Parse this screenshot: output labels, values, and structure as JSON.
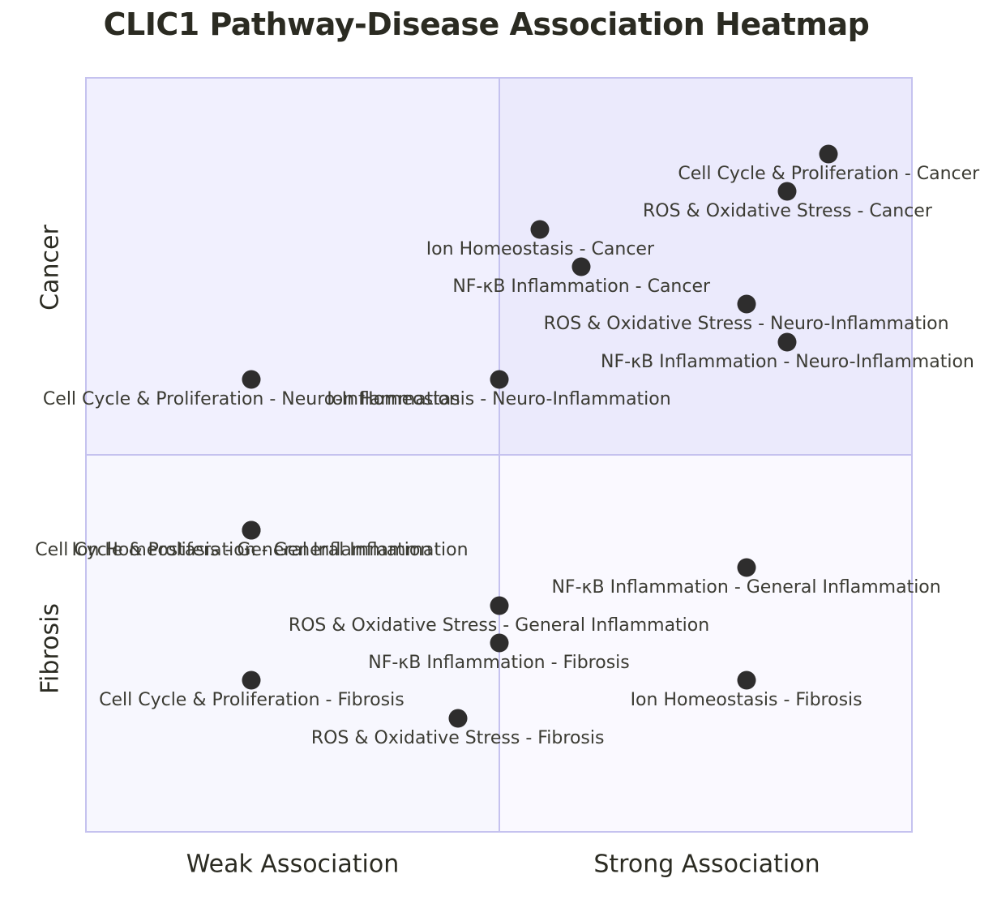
{
  "title": "CLIC1 Pathway-Disease Association Heatmap",
  "axes": {
    "x_left": "Weak Association",
    "x_right": "Strong Association",
    "y_top": "Cancer",
    "y_bottom": "Fibrosis"
  },
  "colors": {
    "quadrant_top_left": "#f1f0fe",
    "quadrant_top_right": "#ebeafc",
    "quadrant_bottom_left": "#f7f7fe",
    "quadrant_bottom_right": "#faf9ff",
    "grid_line": "#c5c2ef",
    "point": "#2e2d2d",
    "title_text": "#2b2b22",
    "label_text": "#3b3b33"
  },
  "chart_data": {
    "type": "scatter",
    "title": "CLIC1 Pathway-Disease Association Heatmap",
    "x_axis": {
      "label_left": "Weak Association",
      "label_right": "Strong Association",
      "range": [
        0,
        1
      ],
      "meaning": "association strength, weak (left) to strong (right)"
    },
    "y_axis": {
      "label_top": "Cancer",
      "label_bottom": "Fibrosis",
      "meaning": "disease group band; y is vertical position fraction from plot top"
    },
    "grid": "2x2 quadrants, vertical and horizontal midlines",
    "legend": "none",
    "points": [
      {
        "pathway": "Cell Cycle & Proliferation",
        "disease": "Cancer",
        "label": "Cell Cycle & Proliferation - Cancer",
        "x": 0.9,
        "y": 0.1
      },
      {
        "pathway": "ROS & Oxidative Stress",
        "disease": "Cancer",
        "label": "ROS & Oxidative Stress - Cancer",
        "x": 0.85,
        "y": 0.15
      },
      {
        "pathway": "Ion Homeostasis",
        "disease": "Cancer",
        "label": "Ion Homeostasis - Cancer",
        "x": 0.55,
        "y": 0.2
      },
      {
        "pathway": "NF-κB Inflammation",
        "disease": "Cancer",
        "label": "NF-κB Inflammation - Cancer",
        "x": 0.6,
        "y": 0.25
      },
      {
        "pathway": "ROS & Oxidative Stress",
        "disease": "Neuro-Inflammation",
        "label": "ROS & Oxidative Stress - Neuro-Inflammation",
        "x": 0.8,
        "y": 0.3
      },
      {
        "pathway": "NF-κB Inflammation",
        "disease": "Neuro-Inflammation",
        "label": "NF-κB Inflammation - Neuro-Inflammation",
        "x": 0.85,
        "y": 0.35
      },
      {
        "pathway": "Cell Cycle & Proliferation",
        "disease": "Neuro-Inflammation",
        "label": "Cell Cycle & Proliferation - Neuro-Inflammation",
        "x": 0.2,
        "y": 0.4
      },
      {
        "pathway": "Ion Homeostasis",
        "disease": "Neuro-Inflammation",
        "label": "Ion Homeostasis - Neuro-Inflammation",
        "x": 0.5,
        "y": 0.4
      },
      {
        "pathway": "Cell Cycle & Proliferation",
        "disease": "General Inflammation",
        "label": "Cell Cycle & Proliferation - General Inflammation",
        "x": 0.2,
        "y": 0.6
      },
      {
        "pathway": "Ion Homeostasis",
        "disease": "General Inflammation",
        "label": "Ion Homeostasis - General Inflammation",
        "x": 0.2,
        "y": 0.6
      },
      {
        "pathway": "NF-κB Inflammation",
        "disease": "General Inflammation",
        "label": "NF-κB Inflammation - General Inflammation",
        "x": 0.8,
        "y": 0.65
      },
      {
        "pathway": "ROS & Oxidative Stress",
        "disease": "General Inflammation",
        "label": "ROS & Oxidative Stress - General Inflammation",
        "x": 0.5,
        "y": 0.7
      },
      {
        "pathway": "NF-κB Inflammation",
        "disease": "Fibrosis",
        "label": "NF-κB Inflammation - Fibrosis",
        "x": 0.5,
        "y": 0.75
      },
      {
        "pathway": "Cell Cycle & Proliferation",
        "disease": "Fibrosis",
        "label": "Cell Cycle & Proliferation - Fibrosis",
        "x": 0.2,
        "y": 0.8
      },
      {
        "pathway": "Ion Homeostasis",
        "disease": "Fibrosis",
        "label": "Ion Homeostasis - Fibrosis",
        "x": 0.8,
        "y": 0.8
      },
      {
        "pathway": "ROS & Oxidative Stress",
        "disease": "Fibrosis",
        "label": "ROS & Oxidative Stress - Fibrosis",
        "x": 0.45,
        "y": 0.85
      }
    ]
  }
}
